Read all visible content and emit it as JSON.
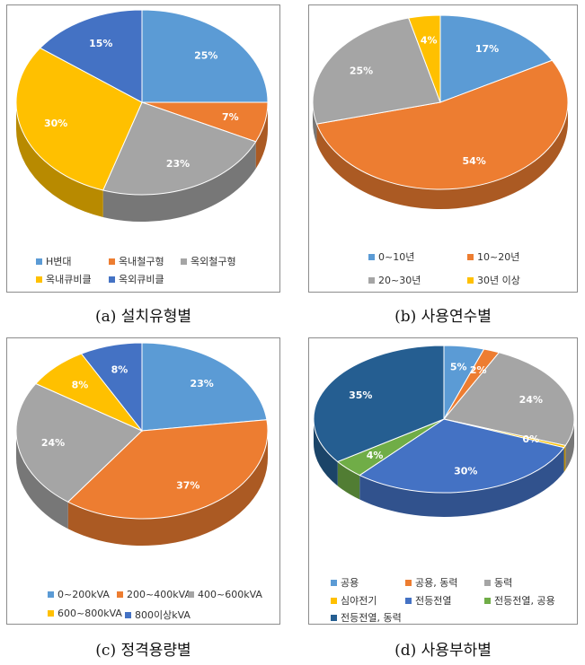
{
  "charts": [
    {
      "caption": "(a) 설치유형별",
      "chart_data": {
        "type": "pie",
        "title": "",
        "categories": [
          "H변대",
          "옥내철구형",
          "옥외철구형",
          "옥내큐비클",
          "옥외큐비클"
        ],
        "values": [
          25,
          7,
          23,
          30,
          15
        ],
        "labels": [
          "25%",
          "7%",
          "23%",
          "30%",
          "15%"
        ],
        "colors": [
          "#5b9bd5",
          "#ed7d31",
          "#a5a5a5",
          "#ffc000",
          "#4472c4"
        ],
        "legend_position": "bottom"
      }
    },
    {
      "caption": "(b) 사용연수별",
      "chart_data": {
        "type": "pie",
        "title": "",
        "categories": [
          "0~10년",
          "10~20년",
          "20~30년",
          "30년 이상"
        ],
        "values": [
          17,
          54,
          25,
          4
        ],
        "labels": [
          "17%",
          "54%",
          "25%",
          "4%"
        ],
        "colors": [
          "#5b9bd5",
          "#ed7d31",
          "#a5a5a5",
          "#ffc000"
        ],
        "legend_position": "bottom"
      }
    },
    {
      "caption": "(c) 정격용량별",
      "chart_data": {
        "type": "pie",
        "title": "",
        "categories": [
          "0~200kVA",
          "200~400kVA",
          "400~600kVA",
          "600~800kVA",
          "800이상kVA"
        ],
        "values": [
          23,
          37,
          24,
          8,
          8
        ],
        "labels": [
          "23%",
          "37%",
          "24%",
          "8%",
          "8%"
        ],
        "colors": [
          "#5b9bd5",
          "#ed7d31",
          "#a5a5a5",
          "#ffc000",
          "#4472c4"
        ],
        "legend_position": "bottom"
      }
    },
    {
      "caption": "(d) 사용부하별",
      "chart_data": {
        "type": "pie",
        "title": "",
        "categories": [
          "공용",
          "공용, 동력",
          "동력",
          "심야전기",
          "전등전열",
          "전등전열, 공용",
          "전등전열, 동력"
        ],
        "values": [
          5,
          2,
          24,
          0.5,
          30,
          4,
          35
        ],
        "labels": [
          "5%",
          "2%",
          "24%",
          "0%",
          "30%",
          "4%",
          "35%"
        ],
        "colors": [
          "#5b9bd5",
          "#ed7d31",
          "#a5a5a5",
          "#ffc000",
          "#4472c4",
          "#70ad47",
          "#255e91"
        ],
        "legend_position": "bottom"
      }
    }
  ]
}
